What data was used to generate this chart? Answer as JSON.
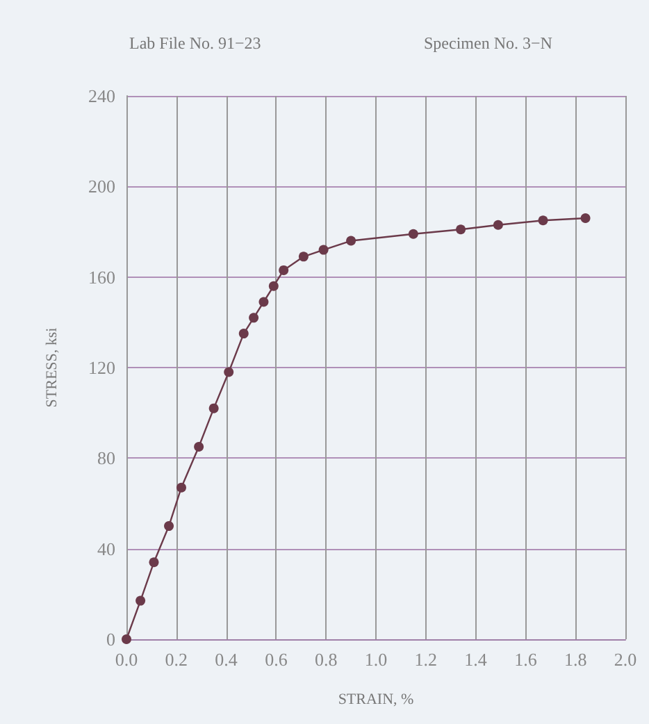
{
  "chart_data": {
    "type": "line",
    "title": "Lab File No. 91−23",
    "subtitle": "Specimen No. 3−N",
    "xlabel": "STRAIN, %",
    "ylabel": "STRESS, ksi",
    "x": [
      0,
      0.056,
      0.11,
      0.17,
      0.22,
      0.29,
      0.35,
      0.41,
      0.47,
      0.51,
      0.55,
      0.59,
      0.63,
      0.71,
      0.79,
      0.9,
      1.15,
      1.34,
      1.49,
      1.67,
      1.84
    ],
    "series": [
      {
        "color": "#6b3a4a",
        "values": [
          0,
          17,
          34,
          50,
          67,
          85,
          102,
          118,
          135,
          142,
          149,
          156,
          163,
          169,
          172,
          176,
          179,
          181,
          183,
          185,
          186
        ]
      }
    ],
    "xlim": [
      0,
      2
    ],
    "xticks": [
      {
        "value": 0,
        "label": "0.0"
      },
      0.2,
      0.4,
      0.6,
      0.8,
      {
        "value": 1,
        "label": "1.0"
      },
      1.2,
      1.4,
      1.6,
      1.8,
      {
        "value": 2,
        "label": "2.0"
      }
    ],
    "ylim": [
      0,
      240
    ],
    "yticks": [
      0,
      40,
      80,
      120,
      160,
      200,
      240
    ],
    "grid": true,
    "marker": "circle",
    "line_style": "solid"
  }
}
